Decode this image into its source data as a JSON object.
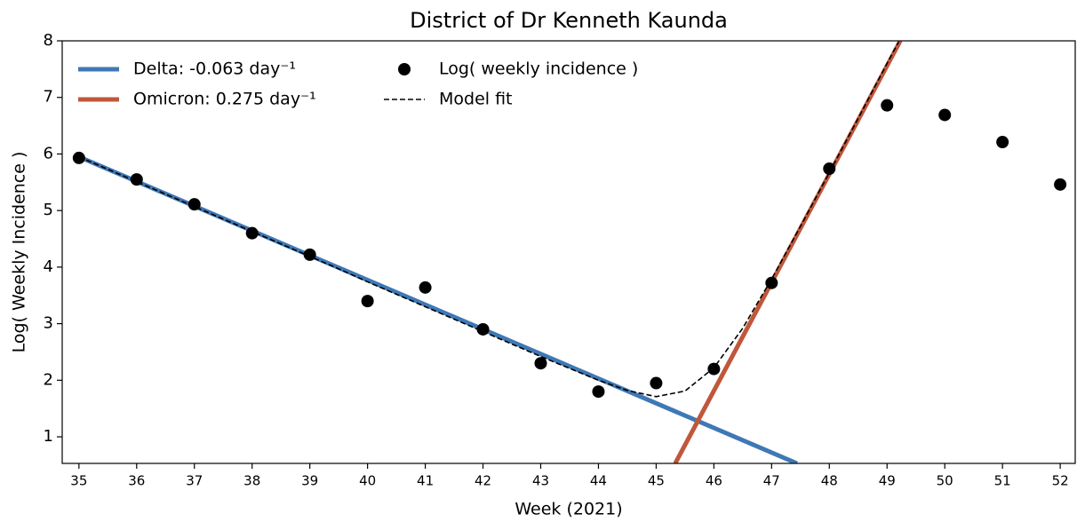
{
  "chart_data": {
    "type": "line",
    "title": "District of Dr Kenneth Kaunda",
    "x_label": "Week (2021)",
    "y_label": "Log( Weekly Incidence )",
    "xlim": [
      34.71,
      52.26
    ],
    "ylim": [
      0.53,
      8
    ],
    "xticks": [
      35,
      36,
      37,
      38,
      39,
      40,
      41,
      42,
      43,
      44,
      45,
      46,
      47,
      48,
      49,
      50,
      51,
      52
    ],
    "yticks": [
      1,
      2,
      3,
      4,
      5,
      6,
      7,
      8
    ],
    "legend": "upper left",
    "series": [
      {
        "name": "Delta: -0.063 day⁻¹",
        "color": "#3f78b5",
        "style": "solid",
        "x": [
          35,
          47.44
        ],
        "values": [
          5.95,
          0.53
        ]
      },
      {
        "name": "Omicron: 0.275 day⁻¹",
        "color": "#c0573a",
        "style": "solid",
        "x": [
          45.33,
          49.23
        ],
        "values": [
          0.53,
          8
        ]
      },
      {
        "name": "Log( weekly incidence )",
        "color": "#000000",
        "style": "marker",
        "x": [
          35,
          36,
          37,
          38,
          39,
          40,
          41,
          42,
          43,
          44,
          45,
          46,
          47,
          48,
          49,
          50,
          51,
          52
        ],
        "values": [
          5.93,
          5.55,
          5.11,
          4.6,
          4.22,
          3.4,
          3.64,
          2.9,
          2.3,
          1.8,
          1.95,
          2.2,
          3.72,
          5.74,
          6.86,
          6.69,
          6.21,
          5.46
        ]
      },
      {
        "name": "Model fit",
        "color": "#000000",
        "style": "dashed",
        "x": [
          35,
          35.5,
          36,
          36.5,
          37,
          37.5,
          38,
          38.5,
          39,
          39.5,
          40,
          40.5,
          41,
          41.5,
          42,
          42.5,
          43,
          43.5,
          44,
          44.5,
          45,
          45.5,
          46,
          46.5,
          47,
          47.5,
          48,
          48.5,
          49,
          49.2
        ],
        "values": [
          5.95,
          5.73,
          5.51,
          5.29,
          5.07,
          4.85,
          4.63,
          4.41,
          4.19,
          3.97,
          3.74,
          3.52,
          3.3,
          3.08,
          2.86,
          2.64,
          2.42,
          2.21,
          2.0,
          1.82,
          1.71,
          1.81,
          2.22,
          2.92,
          3.79,
          4.72,
          5.67,
          6.63,
          7.6,
          7.98
        ]
      }
    ]
  }
}
